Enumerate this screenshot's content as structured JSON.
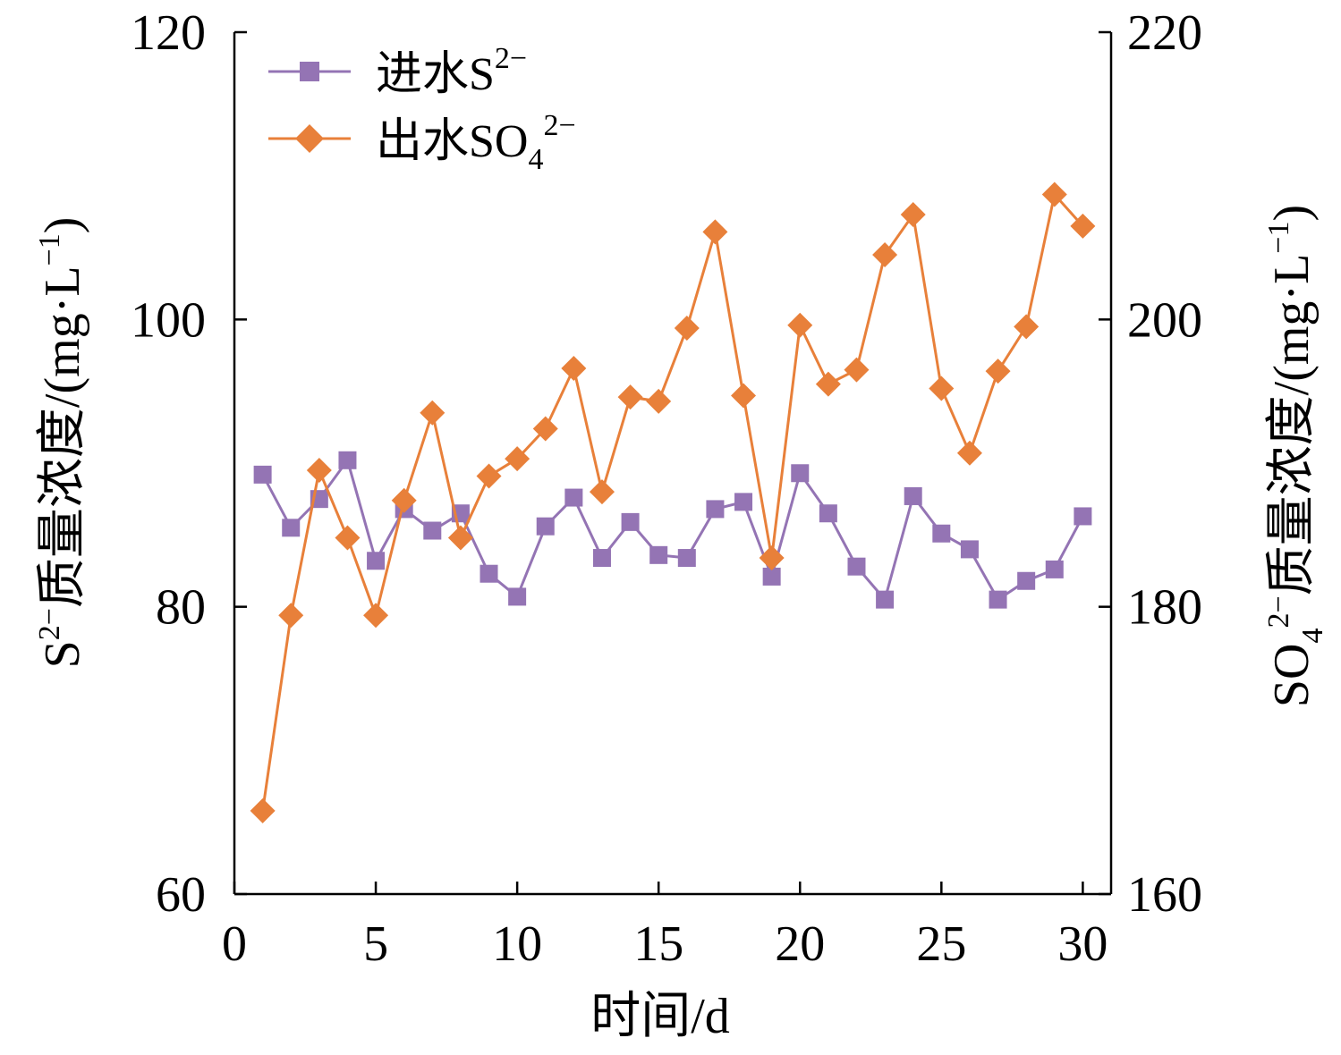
{
  "chart_data": {
    "type": "line",
    "x": [
      1,
      2,
      3,
      4,
      5,
      6,
      7,
      8,
      9,
      10,
      11,
      12,
      13,
      14,
      15,
      16,
      17,
      18,
      19,
      20,
      21,
      22,
      23,
      24,
      25,
      26,
      27,
      28,
      29,
      30
    ],
    "xlim": [
      0,
      31
    ],
    "x_ticks": [
      0,
      5,
      10,
      15,
      20,
      25,
      30
    ],
    "xlabel": "时间/d",
    "y_left": {
      "label_main": "S",
      "label_sup": "2−",
      "label_rest": "质量浓度/(mg·L",
      "label_unit_sup": "−1",
      "label_close": ")",
      "ylim": [
        60,
        120
      ],
      "ticks": [
        60,
        80,
        100,
        120
      ]
    },
    "y_right": {
      "label_main": "SO",
      "label_sub": "4",
      "label_sup": "2−",
      "label_rest": "质量浓度/(mg·L",
      "label_unit_sup": "−1",
      "label_close": ")",
      "ylim": [
        160,
        220
      ],
      "ticks": [
        160,
        180,
        200,
        220
      ]
    },
    "grid": false,
    "legend_position": "top-left",
    "series": [
      {
        "name_main": "进水S",
        "name_sup": "2−",
        "axis": "left",
        "marker": "square",
        "color": "#9474b4",
        "values": [
          89.2,
          85.5,
          87.5,
          90.2,
          83.2,
          86.8,
          85.3,
          86.5,
          82.3,
          80.7,
          85.6,
          87.6,
          83.4,
          85.9,
          83.6,
          83.4,
          86.8,
          87.3,
          82.1,
          89.3,
          86.5,
          82.8,
          80.5,
          87.7,
          85.1,
          84.0,
          80.5,
          81.8,
          82.6,
          86.3
        ]
      },
      {
        "name_main": "出水SO",
        "name_sub": "4",
        "name_sup": "2−",
        "axis": "right",
        "marker": "diamond",
        "color": "#e8803a",
        "values": [
          165.8,
          179.4,
          189.5,
          184.8,
          179.4,
          187.4,
          193.5,
          184.8,
          189.1,
          190.3,
          192.4,
          196.6,
          188.0,
          194.6,
          194.3,
          199.4,
          206.1,
          194.7,
          183.4,
          199.6,
          195.5,
          196.5,
          204.5,
          207.3,
          195.2,
          190.7,
          196.4,
          199.5,
          208.7,
          206.5
        ]
      }
    ]
  }
}
